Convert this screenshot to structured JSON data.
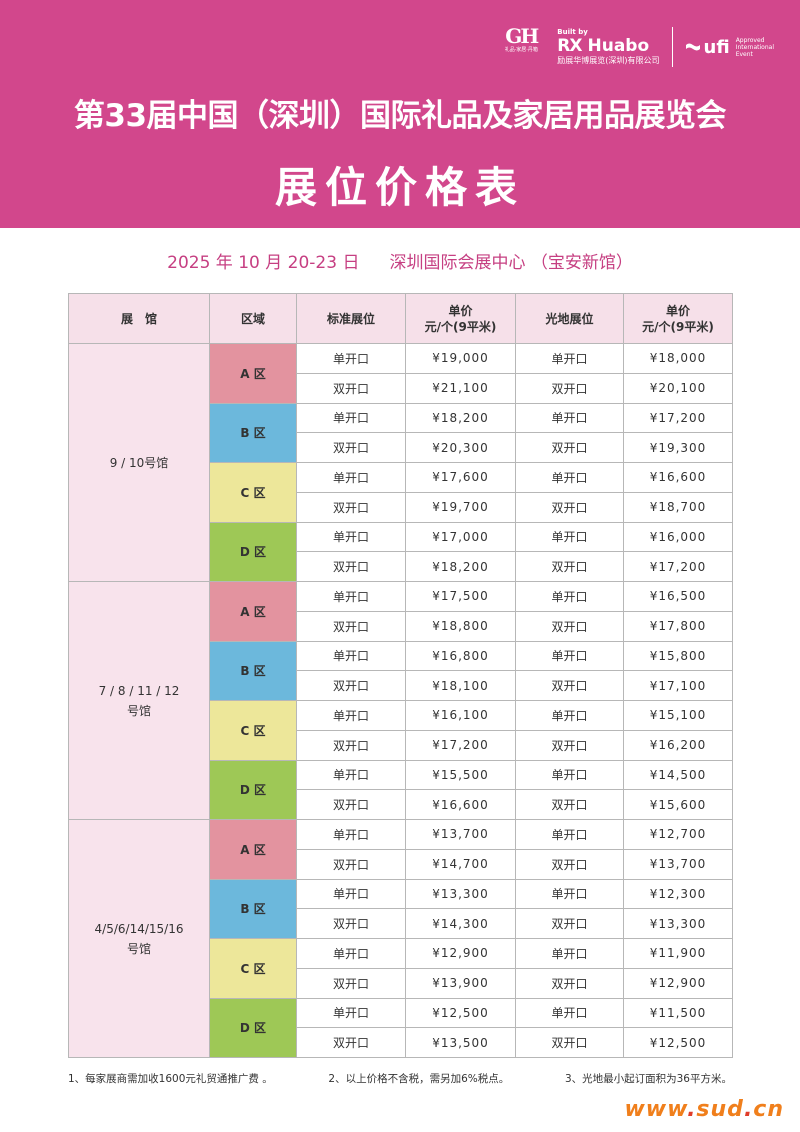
{
  "header": {
    "gh_logo": {
      "mark": "GH",
      "caption": "礼品·家居·丹箱"
    },
    "rx_logo": {
      "built_by": "Built by",
      "mark": "RX",
      "name": "Huabo",
      "company": "励展华博展览(深圳)有限公司"
    },
    "ufi_logo": {
      "name": "ufi",
      "approved": [
        "Approved",
        "International",
        "Event"
      ]
    },
    "title": "第33届中国（深圳）国际礼品及家居用品展览会",
    "subtitle": "展位价格表"
  },
  "event": {
    "date": "2025 年 10 月 20-23 日",
    "venue": "深圳国际会展中心 （宝安新馆）"
  },
  "table": {
    "headers": {
      "hall": "展　馆",
      "zone": "区域",
      "standard": "标准展位",
      "standard_price": [
        "单价",
        "元/个(9平米)"
      ],
      "raw": "光地展位",
      "raw_price": [
        "单价",
        "元/个(9平米)"
      ]
    },
    "halls": [
      {
        "name": [
          "9 / 10号馆"
        ],
        "zones": [
          {
            "label": "A 区",
            "color": "#e3939f",
            "rows": [
              {
                "std": "单开口",
                "std_price": "¥19,000",
                "raw": "单开口",
                "raw_price": "¥18,000"
              },
              {
                "std": "双开口",
                "std_price": "¥21,100",
                "raw": "双开口",
                "raw_price": "¥20,100"
              }
            ]
          },
          {
            "label": "B 区",
            "color": "#6cb8dc",
            "rows": [
              {
                "std": "单开口",
                "std_price": "¥18,200",
                "raw": "单开口",
                "raw_price": "¥17,200"
              },
              {
                "std": "双开口",
                "std_price": "¥20,300",
                "raw": "双开口",
                "raw_price": "¥19,300"
              }
            ]
          },
          {
            "label": "C 区",
            "color": "#ede79a",
            "rows": [
              {
                "std": "单开口",
                "std_price": "¥17,600",
                "raw": "单开口",
                "raw_price": "¥16,600"
              },
              {
                "std": "双开口",
                "std_price": "¥19,700",
                "raw": "双开口",
                "raw_price": "¥18,700"
              }
            ]
          },
          {
            "label": "D 区",
            "color": "#9ec856",
            "rows": [
              {
                "std": "单开口",
                "std_price": "¥17,000",
                "raw": "单开口",
                "raw_price": "¥16,000"
              },
              {
                "std": "双开口",
                "std_price": "¥18,200",
                "raw": "双开口",
                "raw_price": "¥17,200"
              }
            ]
          }
        ]
      },
      {
        "name": [
          "7 / 8 / 11 / 12",
          "号馆"
        ],
        "zones": [
          {
            "label": "A 区",
            "color": "#e3939f",
            "rows": [
              {
                "std": "单开口",
                "std_price": "¥17,500",
                "raw": "单开口",
                "raw_price": "¥16,500"
              },
              {
                "std": "双开口",
                "std_price": "¥18,800",
                "raw": "双开口",
                "raw_price": "¥17,800"
              }
            ]
          },
          {
            "label": "B 区",
            "color": "#6cb8dc",
            "rows": [
              {
                "std": "单开口",
                "std_price": "¥16,800",
                "raw": "单开口",
                "raw_price": "¥15,800"
              },
              {
                "std": "双开口",
                "std_price": "¥18,100",
                "raw": "双开口",
                "raw_price": "¥17,100"
              }
            ]
          },
          {
            "label": "C 区",
            "color": "#ede79a",
            "rows": [
              {
                "std": "单开口",
                "std_price": "¥16,100",
                "raw": "单开口",
                "raw_price": "¥15,100"
              },
              {
                "std": "双开口",
                "std_price": "¥17,200",
                "raw": "双开口",
                "raw_price": "¥16,200"
              }
            ]
          },
          {
            "label": "D 区",
            "color": "#9ec856",
            "rows": [
              {
                "std": "单开口",
                "std_price": "¥15,500",
                "raw": "单开口",
                "raw_price": "¥14,500"
              },
              {
                "std": "双开口",
                "std_price": "¥16,600",
                "raw": "双开口",
                "raw_price": "¥15,600"
              }
            ]
          }
        ]
      },
      {
        "name": [
          "4/5/6/14/15/16",
          "号馆"
        ],
        "zones": [
          {
            "label": "A 区",
            "color": "#e3939f",
            "rows": [
              {
                "std": "单开口",
                "std_price": "¥13,700",
                "raw": "单开口",
                "raw_price": "¥12,700"
              },
              {
                "std": "双开口",
                "std_price": "¥14,700",
                "raw": "双开口",
                "raw_price": "¥13,700"
              }
            ]
          },
          {
            "label": "B 区",
            "color": "#6cb8dc",
            "rows": [
              {
                "std": "单开口",
                "std_price": "¥13,300",
                "raw": "单开口",
                "raw_price": "¥12,300"
              },
              {
                "std": "双开口",
                "std_price": "¥14,300",
                "raw": "双开口",
                "raw_price": "¥13,300"
              }
            ]
          },
          {
            "label": "C 区",
            "color": "#ede79a",
            "rows": [
              {
                "std": "单开口",
                "std_price": "¥12,900",
                "raw": "单开口",
                "raw_price": "¥11,900"
              },
              {
                "std": "双开口",
                "std_price": "¥13,900",
                "raw": "双开口",
                "raw_price": "¥12,900"
              }
            ]
          },
          {
            "label": "D 区",
            "color": "#9ec856",
            "rows": [
              {
                "std": "单开口",
                "std_price": "¥12,500",
                "raw": "单开口",
                "raw_price": "¥11,500"
              },
              {
                "std": "双开口",
                "std_price": "¥13,500",
                "raw": "双开口",
                "raw_price": "¥12,500"
              }
            ]
          }
        ]
      }
    ]
  },
  "notes": [
    "1、每家展商需加收1600元礼贸通推广费 。",
    "2、以上价格不含税，需另加6%税点。",
    "3、光地最小起订面积为36平方米。"
  ],
  "watermark": {
    "prefix": "www",
    "dot1": ".",
    "name": "sud",
    "dot2": ".",
    "tld": "cn"
  }
}
